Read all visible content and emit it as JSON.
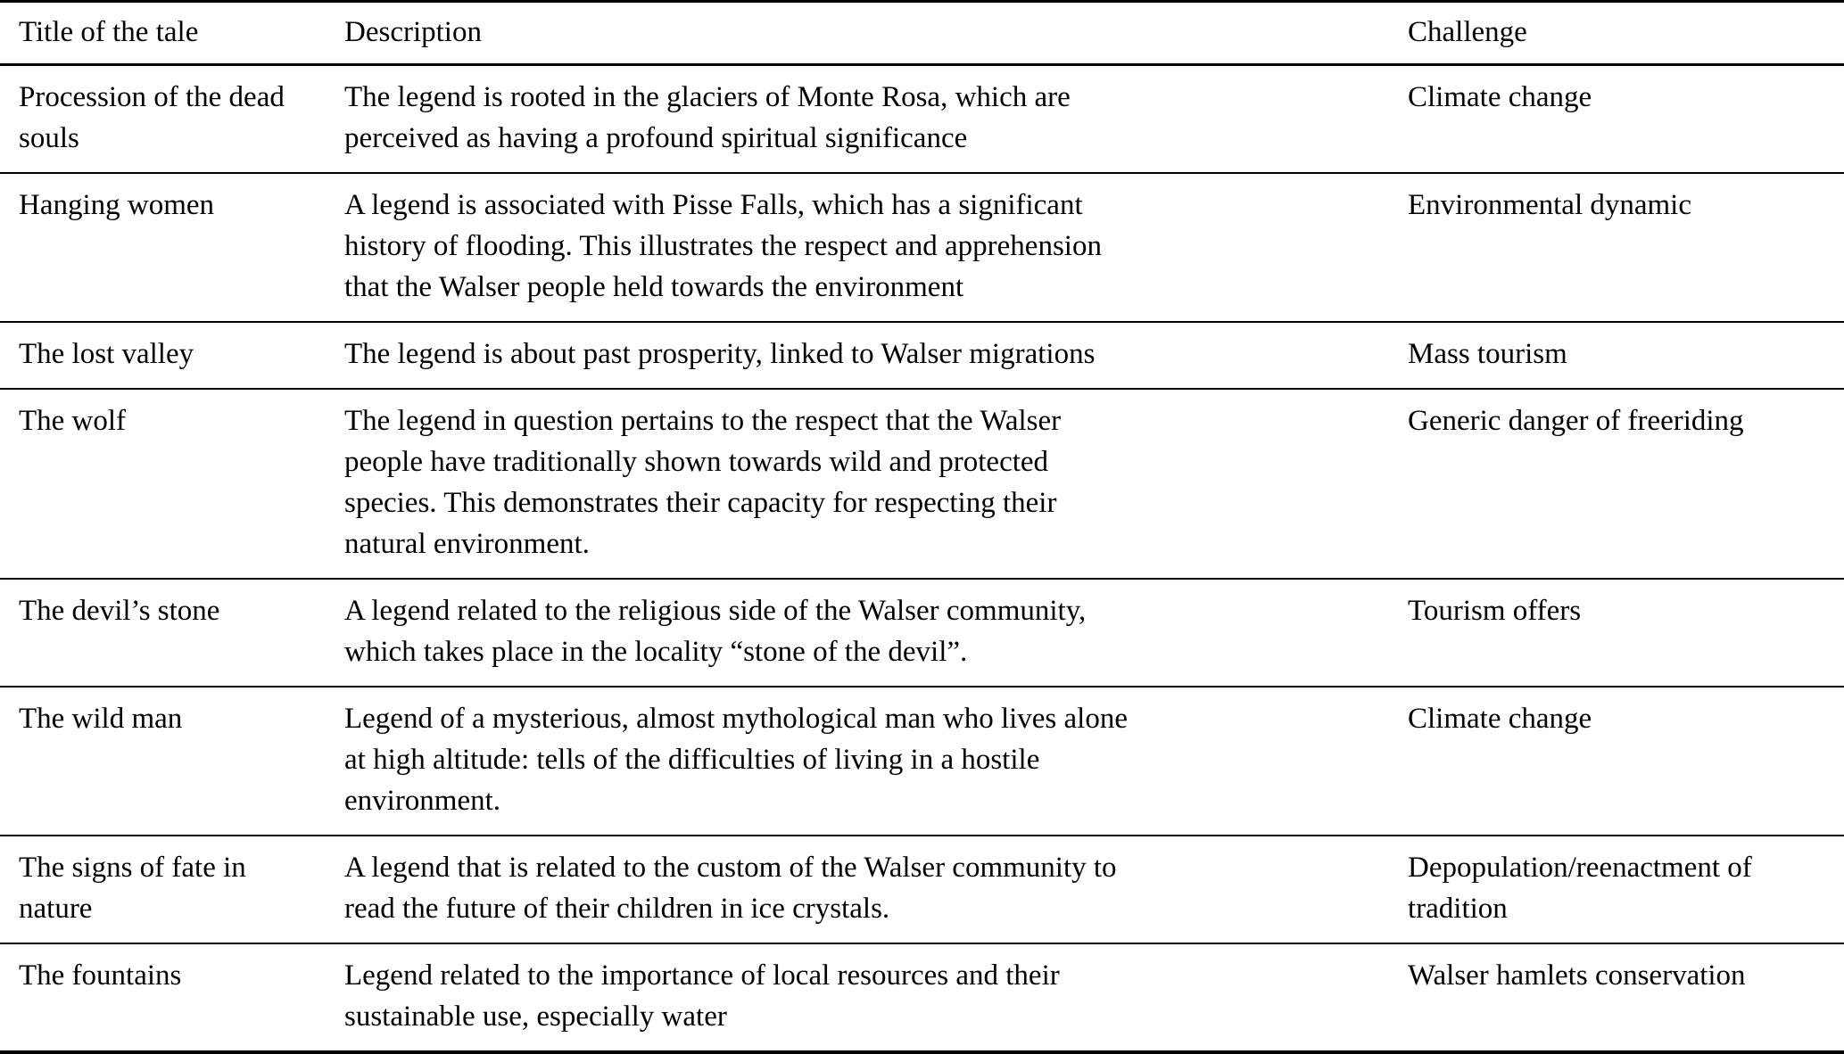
{
  "table": {
    "columns": {
      "title": "Title of the tale",
      "description": "Description",
      "challenge": "Challenge"
    },
    "rows": [
      {
        "title": "Procession of the dead souls",
        "description": [
          "The legend is rooted in the glaciers of Monte Rosa, which are",
          "perceived as having a profound spiritual significance"
        ],
        "challenge": [
          "Climate change"
        ]
      },
      {
        "title": "Hanging women",
        "description": [
          "A legend is associated with Pisse Falls, which has a significant",
          "history of flooding. This illustrates the respect and apprehension",
          "that the Walser people held towards the environment"
        ],
        "challenge": [
          "Environmental dynamic"
        ]
      },
      {
        "title": "The lost valley",
        "description": [
          "The legend is about past prosperity, linked to Walser migrations"
        ],
        "challenge": [
          "Mass tourism"
        ]
      },
      {
        "title": "The wolf",
        "description": [
          "The legend in question pertains to the respect that the Walser",
          "people have traditionally shown towards wild and protected",
          "species. This demonstrates their capacity for respecting their",
          "natural environment."
        ],
        "challenge": [
          "Generic danger of freeriding"
        ]
      },
      {
        "title": "The devil’s stone",
        "description": [
          "A legend related to the religious side of the Walser community,",
          "which takes place in the locality “stone of the devil”."
        ],
        "challenge": [
          "Tourism offers"
        ]
      },
      {
        "title": "The wild man",
        "description": [
          "Legend of a mysterious, almost mythological man who lives alone",
          "at high altitude: tells of the difficulties of living in a hostile",
          "environment."
        ],
        "challenge": [
          "Climate change"
        ]
      },
      {
        "title": "The signs of fate in nature",
        "description": [
          "A legend that is related to the custom of the Walser community to",
          "read the future of their children in ice crystals."
        ],
        "challenge": [
          "Depopulation/reenactment of",
          "tradition"
        ]
      },
      {
        "title": "The fountains",
        "description": [
          "Legend related to the importance of local resources and their",
          "sustainable use, especially water"
        ],
        "challenge": [
          "Walser hamlets conservation"
        ]
      }
    ]
  }
}
